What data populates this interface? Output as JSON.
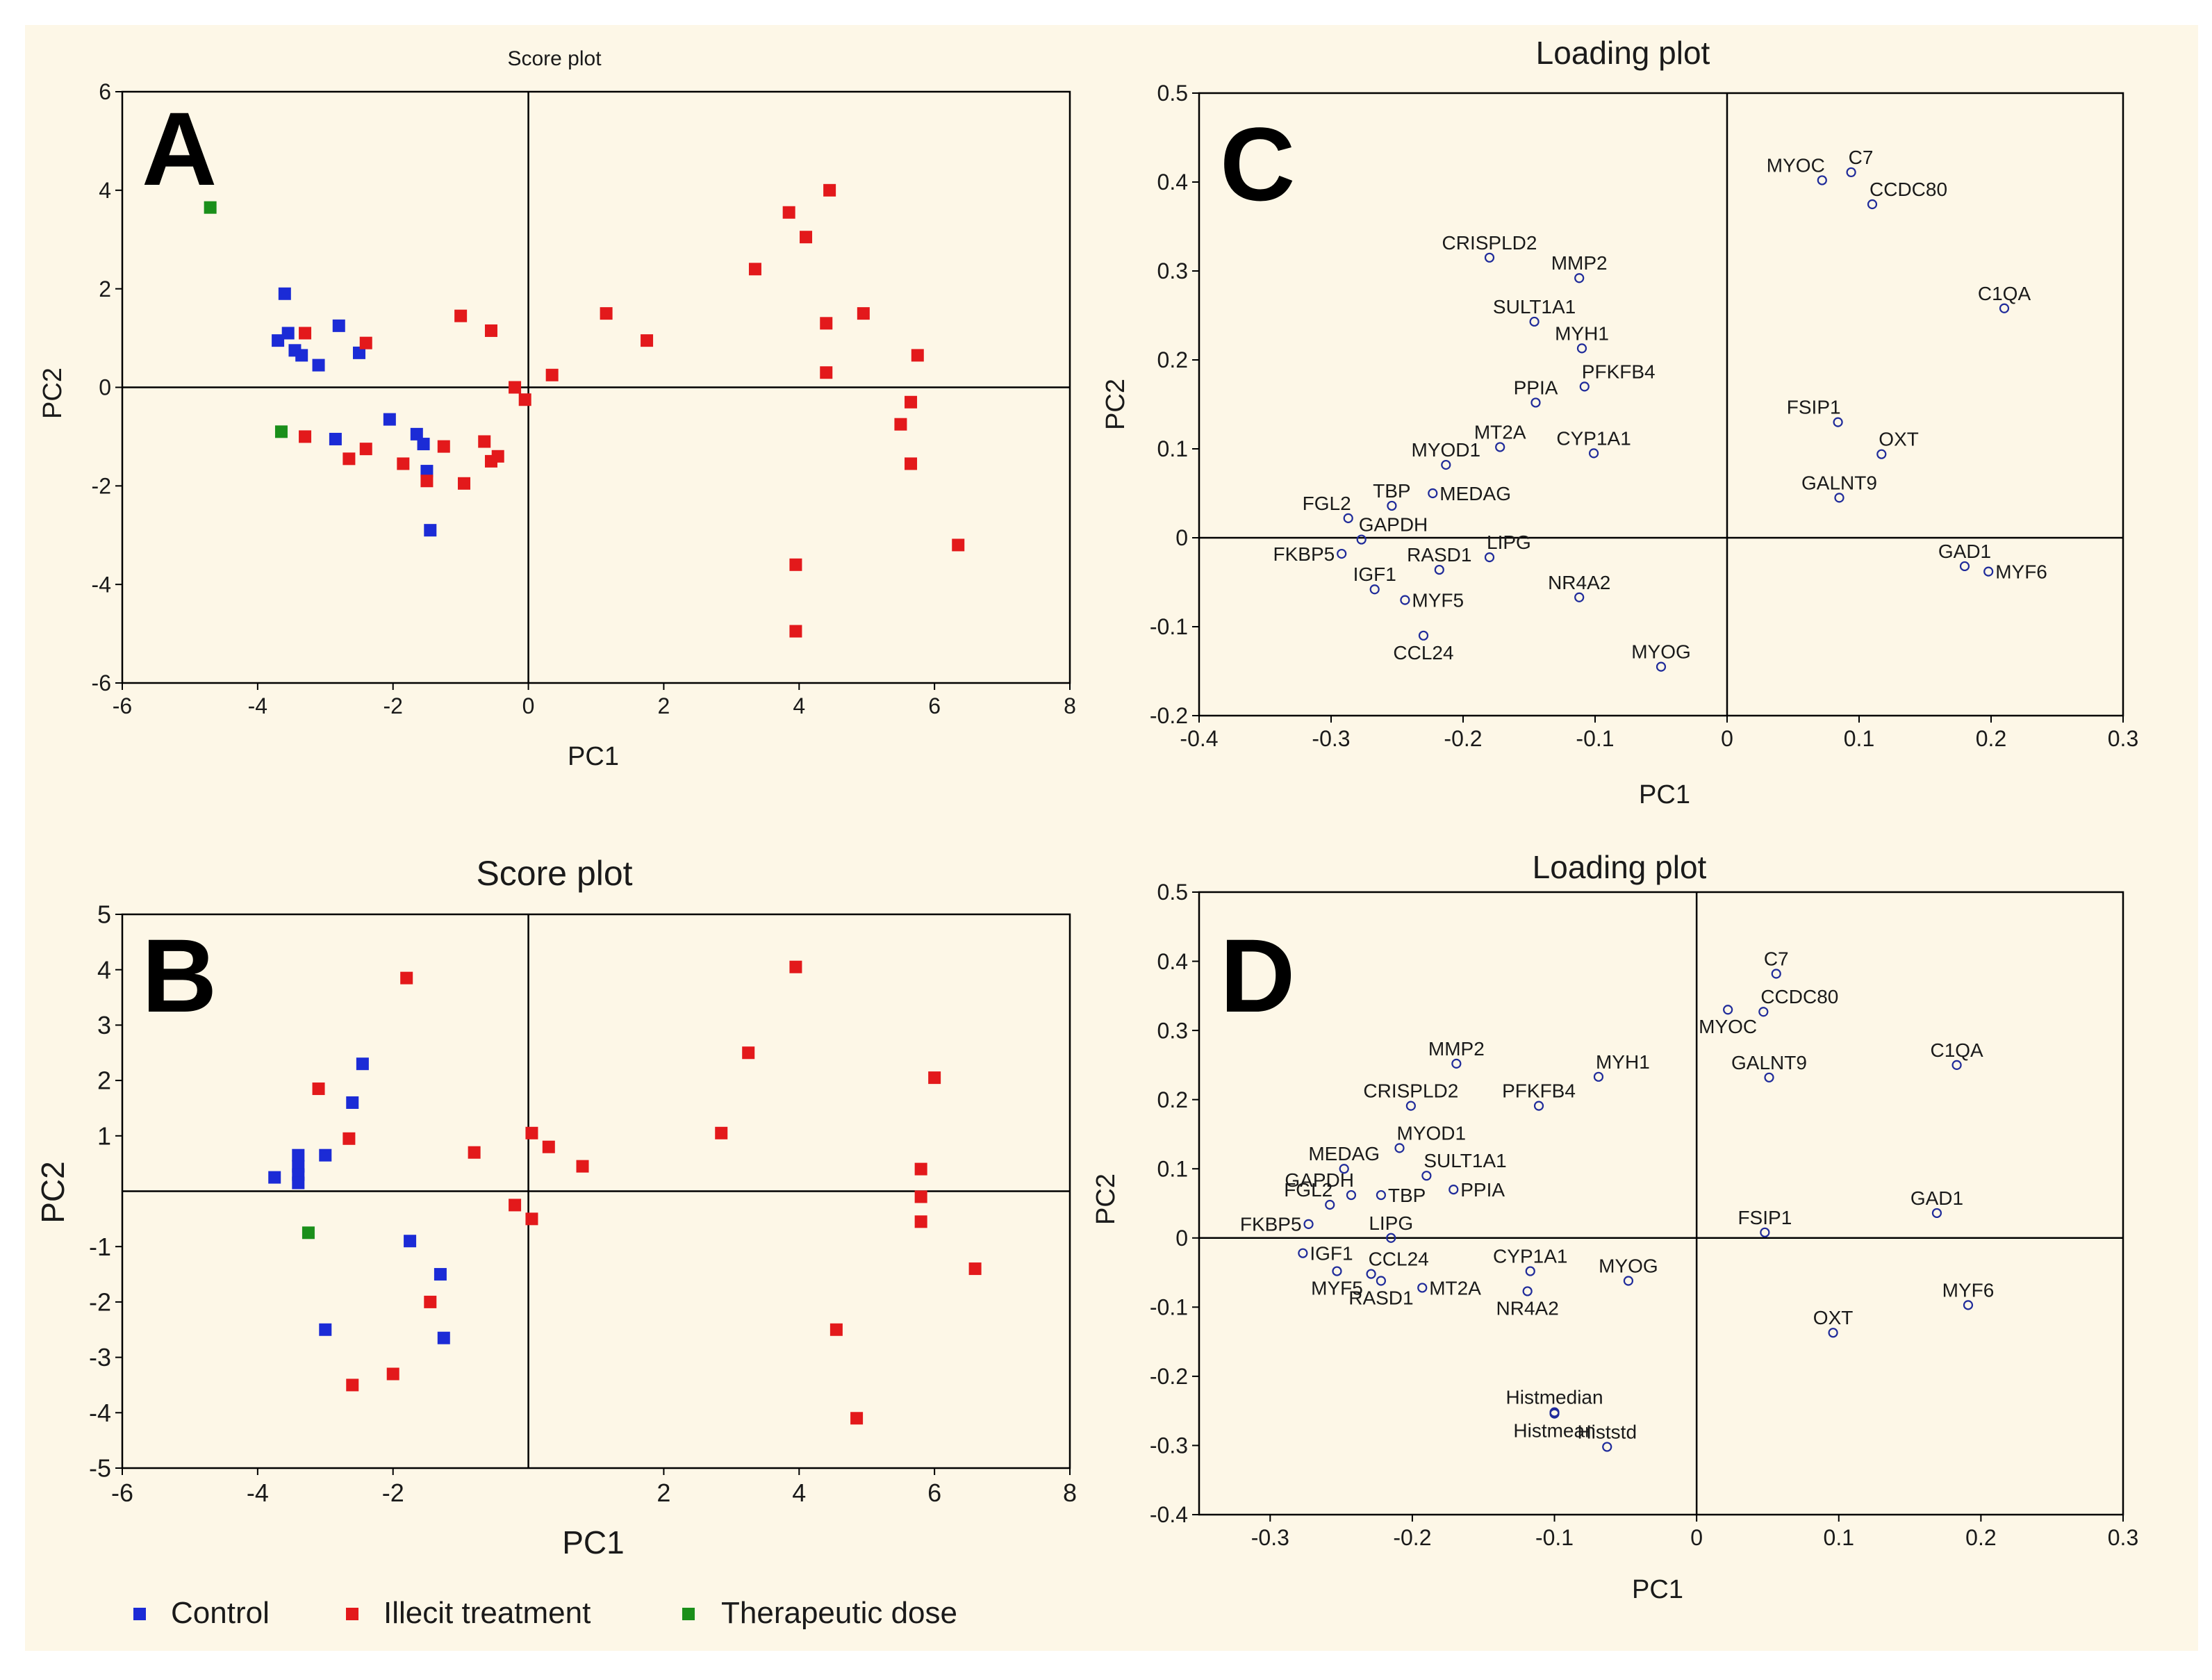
{
  "colors": {
    "control": "#1b2bd6",
    "illicit": "#e3191b",
    "therapeutic": "#1a8f1a",
    "loading_marker": "#1f2b9a",
    "axis": "#000000",
    "panel_bg": "#fdf7e7"
  },
  "legend": [
    {
      "label": "Control",
      "color_key": "control"
    },
    {
      "label": "Illecit treatment",
      "color_key": "illicit"
    },
    {
      "label": "Therapeutic dose",
      "color_key": "therapeutic"
    }
  ],
  "chart_data": [
    {
      "id": "A",
      "type": "scatter",
      "title": "Score plot",
      "xlabel": "PC1",
      "ylabel": "PC2",
      "xlim": [
        -6,
        8
      ],
      "ylim": [
        -6,
        6
      ],
      "xticks": [
        "-6",
        "-4",
        "-2",
        "0",
        "2",
        "4",
        "6",
        "8"
      ],
      "yticks": [
        "6",
        "4",
        "2",
        "0",
        "-2",
        "-4",
        "-6"
      ],
      "series": [
        {
          "name": "Control",
          "color_key": "control",
          "points": [
            [
              -3.6,
              1.9
            ],
            [
              -3.7,
              0.95
            ],
            [
              -3.55,
              1.1
            ],
            [
              -3.45,
              0.75
            ],
            [
              -3.35,
              0.65
            ],
            [
              -3.1,
              0.45
            ],
            [
              -2.8,
              1.25
            ],
            [
              -2.5,
              0.7
            ],
            [
              -2.85,
              -1.05
            ],
            [
              -2.05,
              -0.65
            ],
            [
              -1.65,
              -0.95
            ],
            [
              -1.55,
              -1.15
            ],
            [
              -1.5,
              -1.7
            ],
            [
              -1.45,
              -2.9
            ]
          ]
        },
        {
          "name": "Illecit treatment",
          "color_key": "illicit",
          "points": [
            [
              -3.3,
              1.1
            ],
            [
              -2.4,
              0.9
            ],
            [
              -3.3,
              -1.0
            ],
            [
              -2.65,
              -1.45
            ],
            [
              -2.4,
              -1.25
            ],
            [
              -1.85,
              -1.55
            ],
            [
              -1.5,
              -1.9
            ],
            [
              -1.25,
              -1.2
            ],
            [
              -0.95,
              -1.95
            ],
            [
              -1.0,
              1.45
            ],
            [
              -0.55,
              1.15
            ],
            [
              -0.65,
              -1.1
            ],
            [
              -0.55,
              -1.5
            ],
            [
              -0.45,
              -1.4
            ],
            [
              -0.2,
              0.0
            ],
            [
              -0.05,
              -0.25
            ],
            [
              0.35,
              0.25
            ],
            [
              1.15,
              1.5
            ],
            [
              1.75,
              0.95
            ],
            [
              3.35,
              2.4
            ],
            [
              3.85,
              3.55
            ],
            [
              4.1,
              3.05
            ],
            [
              4.45,
              4.0
            ],
            [
              4.4,
              1.3
            ],
            [
              4.4,
              0.3
            ],
            [
              4.95,
              1.5
            ],
            [
              5.75,
              0.65
            ],
            [
              5.5,
              -0.75
            ],
            [
              5.65,
              -0.3
            ],
            [
              5.65,
              -1.55
            ],
            [
              6.35,
              -3.2
            ],
            [
              3.95,
              -3.6
            ],
            [
              3.95,
              -4.95
            ]
          ]
        },
        {
          "name": "Therapeutic dose",
          "color_key": "therapeutic",
          "points": [
            [
              -4.7,
              3.65
            ],
            [
              -3.65,
              -0.9
            ]
          ]
        }
      ]
    },
    {
      "id": "B",
      "type": "scatter",
      "title": "Score plot",
      "xlabel": "PC1",
      "ylabel": "PC2",
      "xlim": [
        -6,
        8
      ],
      "ylim": [
        -5,
        5
      ],
      "xticks": [
        "-6",
        "-4",
        "-2",
        "2",
        "4",
        "6",
        "8"
      ],
      "yticks": [
        "5",
        "4",
        "3",
        "2",
        "1",
        "-1",
        "-2",
        "-3",
        "-4",
        "-5"
      ],
      "series": [
        {
          "name": "Control",
          "color_key": "control",
          "points": [
            [
              -3.75,
              0.25
            ],
            [
              -3.4,
              0.65
            ],
            [
              -3.4,
              0.45
            ],
            [
              -3.4,
              0.3
            ],
            [
              -3.4,
              0.15
            ],
            [
              -3.0,
              0.65
            ],
            [
              -2.6,
              1.6
            ],
            [
              -2.45,
              2.3
            ],
            [
              -1.75,
              -0.9
            ],
            [
              -1.3,
              -1.5
            ],
            [
              -1.25,
              -2.65
            ],
            [
              -3.0,
              -2.5
            ]
          ]
        },
        {
          "name": "Illecit treatment",
          "color_key": "illicit",
          "points": [
            [
              -1.8,
              3.85
            ],
            [
              -3.1,
              1.85
            ],
            [
              -2.65,
              0.95
            ],
            [
              -0.8,
              0.7
            ],
            [
              0.05,
              1.05
            ],
            [
              0.3,
              0.8
            ],
            [
              0.8,
              0.45
            ],
            [
              -0.2,
              -0.25
            ],
            [
              0.05,
              -0.5
            ],
            [
              -1.45,
              -2.0
            ],
            [
              -2.0,
              -3.3
            ],
            [
              -2.6,
              -3.5
            ],
            [
              2.85,
              1.05
            ],
            [
              3.25,
              2.5
            ],
            [
              3.95,
              4.05
            ],
            [
              4.55,
              -2.5
            ],
            [
              4.85,
              -4.1
            ],
            [
              5.8,
              0.4
            ],
            [
              5.8,
              -0.1
            ],
            [
              5.8,
              -0.55
            ],
            [
              6.0,
              2.05
            ],
            [
              6.6,
              -1.4
            ]
          ]
        },
        {
          "name": "Therapeutic dose",
          "color_key": "therapeutic",
          "points": [
            [
              -3.25,
              -0.75
            ]
          ]
        }
      ]
    },
    {
      "id": "C",
      "type": "scatter",
      "title": "Loading plot",
      "xlabel": "PC1",
      "ylabel": "PC2",
      "xlim": [
        -0.4,
        0.3
      ],
      "ylim": [
        -0.2,
        0.5
      ],
      "xticks": [
        "-0.4",
        "-0.3",
        "-0.2",
        "-0.1",
        "0",
        "0.1",
        "0.2",
        "0.3"
      ],
      "yticks": [
        "0.5",
        "0.4",
        "0.3",
        "0.2",
        "0.1",
        "0",
        "-0.1",
        "-0.2"
      ],
      "points": [
        {
          "label": "MYOC",
          "x": 0.072,
          "y": 0.402,
          "pos": "left-above"
        },
        {
          "label": "C7",
          "x": 0.094,
          "y": 0.411,
          "pos": "right-above"
        },
        {
          "label": "CCDC80",
          "x": 0.11,
          "y": 0.375,
          "pos": "right-above"
        },
        {
          "label": "C1QA",
          "x": 0.21,
          "y": 0.258,
          "pos": "above"
        },
        {
          "label": "FSIP1",
          "x": 0.084,
          "y": 0.13,
          "pos": "left-above"
        },
        {
          "label": "OXT",
          "x": 0.117,
          "y": 0.094,
          "pos": "right-above"
        },
        {
          "label": "GALNT9",
          "x": 0.085,
          "y": 0.045,
          "pos": "above"
        },
        {
          "label": "GAD1",
          "x": 0.18,
          "y": -0.032,
          "pos": "above"
        },
        {
          "label": "MYF6",
          "x": 0.198,
          "y": -0.038,
          "pos": "right"
        },
        {
          "label": "CRISPLD2",
          "x": -0.18,
          "y": 0.315,
          "pos": "above"
        },
        {
          "label": "MMP2",
          "x": -0.112,
          "y": 0.292,
          "pos": "above"
        },
        {
          "label": "SULT1A1",
          "x": -0.146,
          "y": 0.243,
          "pos": "above"
        },
        {
          "label": "MYH1",
          "x": -0.11,
          "y": 0.213,
          "pos": "above"
        },
        {
          "label": "PFKFB4",
          "x": -0.108,
          "y": 0.17,
          "pos": "right-above"
        },
        {
          "label": "PPIA",
          "x": -0.145,
          "y": 0.152,
          "pos": "above"
        },
        {
          "label": "MT2A",
          "x": -0.172,
          "y": 0.102,
          "pos": "above"
        },
        {
          "label": "CYP1A1",
          "x": -0.101,
          "y": 0.095,
          "pos": "above"
        },
        {
          "label": "MYOD1",
          "x": -0.213,
          "y": 0.082,
          "pos": "above"
        },
        {
          "label": "TBP",
          "x": -0.254,
          "y": 0.036,
          "pos": "above"
        },
        {
          "label": "MEDAG",
          "x": -0.223,
          "y": 0.05,
          "pos": "right"
        },
        {
          "label": "FGL2",
          "x": -0.287,
          "y": 0.022,
          "pos": "left-above"
        },
        {
          "label": "GAPDH",
          "x": -0.277,
          "y": -0.002,
          "pos": "right-above"
        },
        {
          "label": "FKBP5",
          "x": -0.292,
          "y": -0.018,
          "pos": "left"
        },
        {
          "label": "RASD1",
          "x": -0.218,
          "y": -0.036,
          "pos": "above"
        },
        {
          "label": "LIPG",
          "x": -0.18,
          "y": -0.022,
          "pos": "right-above"
        },
        {
          "label": "IGF1",
          "x": -0.267,
          "y": -0.058,
          "pos": "above"
        },
        {
          "label": "MYF5",
          "x": -0.244,
          "y": -0.07,
          "pos": "right"
        },
        {
          "label": "NR4A2",
          "x": -0.112,
          "y": -0.067,
          "pos": "above"
        },
        {
          "label": "CCL24",
          "x": -0.23,
          "y": -0.11,
          "pos": "below"
        },
        {
          "label": "MYOG",
          "x": -0.05,
          "y": -0.145,
          "pos": "above"
        }
      ]
    },
    {
      "id": "D",
      "type": "scatter",
      "title": "Loading plot",
      "xlabel": "PC1",
      "ylabel": "PC2",
      "xlim": [
        -0.35,
        0.3
      ],
      "ylim": [
        -0.4,
        0.5
      ],
      "xticks": [
        "-0.3",
        "-0.2",
        "-0.1",
        "0",
        "0.1",
        "0.2",
        "0.3"
      ],
      "yticks": [
        "0.5",
        "0.4",
        "0.3",
        "0.2",
        "0.1",
        "0",
        "-0.1",
        "-0.2",
        "-0.3",
        "-0.4"
      ],
      "points": [
        {
          "label": "C7",
          "x": 0.056,
          "y": 0.382,
          "pos": "above"
        },
        {
          "label": "CCDC80",
          "x": 0.047,
          "y": 0.327,
          "pos": "right-above"
        },
        {
          "label": "MYOC",
          "x": 0.022,
          "y": 0.33,
          "pos": "below"
        },
        {
          "label": "C1QA",
          "x": 0.183,
          "y": 0.25,
          "pos": "above"
        },
        {
          "label": "GALNT9",
          "x": 0.051,
          "y": 0.232,
          "pos": "above"
        },
        {
          "label": "GAD1",
          "x": 0.169,
          "y": 0.036,
          "pos": "above"
        },
        {
          "label": "FSIP1",
          "x": 0.048,
          "y": 0.008,
          "pos": "above"
        },
        {
          "label": "MYF6",
          "x": 0.191,
          "y": -0.097,
          "pos": "above"
        },
        {
          "label": "OXT",
          "x": 0.096,
          "y": -0.137,
          "pos": "above"
        },
        {
          "label": "MMP2",
          "x": -0.169,
          "y": 0.252,
          "pos": "above"
        },
        {
          "label": "MYH1",
          "x": -0.069,
          "y": 0.233,
          "pos": "right-above"
        },
        {
          "label": "PFKFB4",
          "x": -0.111,
          "y": 0.191,
          "pos": "above"
        },
        {
          "label": "CRISPLD2",
          "x": -0.201,
          "y": 0.191,
          "pos": "above"
        },
        {
          "label": "MYOD1",
          "x": -0.209,
          "y": 0.13,
          "pos": "right-above"
        },
        {
          "label": "MEDAG",
          "x": -0.248,
          "y": 0.1,
          "pos": "above"
        },
        {
          "label": "SULT1A1",
          "x": -0.19,
          "y": 0.09,
          "pos": "right-above"
        },
        {
          "label": "GAPDH",
          "x": -0.243,
          "y": 0.062,
          "pos": "left-above"
        },
        {
          "label": "TBP",
          "x": -0.222,
          "y": 0.062,
          "pos": "right"
        },
        {
          "label": "PPIA",
          "x": -0.171,
          "y": 0.07,
          "pos": "right"
        },
        {
          "label": "FGL2",
          "x": -0.258,
          "y": 0.048,
          "pos": "left-above"
        },
        {
          "label": "LIPG",
          "x": -0.215,
          "y": 0.0,
          "pos": "above"
        },
        {
          "label": "FKBP5",
          "x": -0.273,
          "y": 0.02,
          "pos": "left"
        },
        {
          "label": "IGF1",
          "x": -0.277,
          "y": -0.022,
          "pos": "right"
        },
        {
          "label": "CCL24",
          "x": -0.229,
          "y": -0.052,
          "pos": "right-above"
        },
        {
          "label": "MYF5",
          "x": -0.253,
          "y": -0.048,
          "pos": "below"
        },
        {
          "label": "MT2A",
          "x": -0.193,
          "y": -0.072,
          "pos": "right"
        },
        {
          "label": "RASD1",
          "x": -0.222,
          "y": -0.062,
          "pos": "below"
        },
        {
          "label": "CYP1A1",
          "x": -0.117,
          "y": -0.048,
          "pos": "above"
        },
        {
          "label": "NR4A2",
          "x": -0.119,
          "y": -0.077,
          "pos": "below"
        },
        {
          "label": "MYOG",
          "x": -0.048,
          "y": -0.062,
          "pos": "above"
        },
        {
          "label": "Histmedian",
          "x": -0.1,
          "y": -0.252,
          "pos": "above"
        },
        {
          "label": "Histmean",
          "x": -0.1,
          "y": -0.254,
          "pos": "below"
        },
        {
          "label": "Histstd",
          "x": -0.063,
          "y": -0.302,
          "pos": "above"
        }
      ]
    }
  ]
}
